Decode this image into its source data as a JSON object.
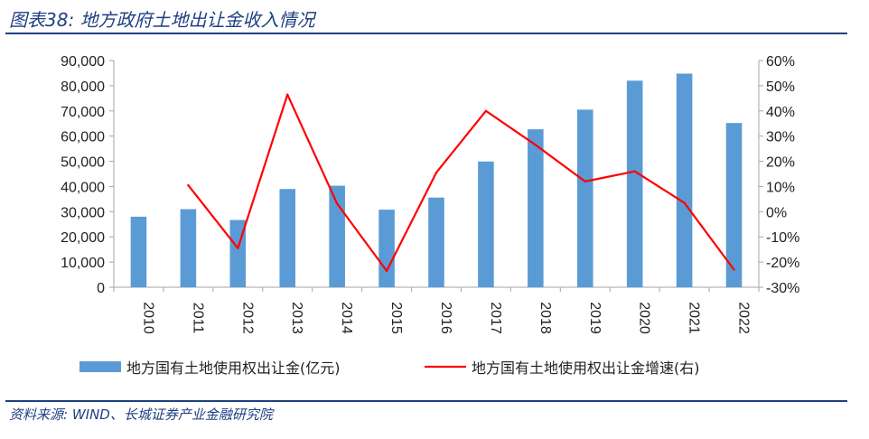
{
  "header": {
    "title": "图表38:  地方政府土地出让金收入情况"
  },
  "footer": {
    "source": "资料来源:  WIND、长城证券产业金融研究院"
  },
  "chart_data": {
    "type": "bar+line",
    "categories": [
      "2010",
      "2011",
      "2012",
      "2013",
      "2014",
      "2015",
      "2016",
      "2017",
      "2018",
      "2019",
      "2020",
      "2021",
      "2022"
    ],
    "series": [
      {
        "name": "地方国有土地使用权出让金(亿元)",
        "type": "bar",
        "axis": "left",
        "color": "#5b9bd5",
        "values": [
          28000,
          31000,
          26700,
          39000,
          40300,
          30800,
          35600,
          49900,
          62700,
          70500,
          82000,
          84800,
          65200
        ]
      },
      {
        "name": "地方国有土地使用权出让金增速(右)",
        "type": "line",
        "axis": "right",
        "color": "#ff0000",
        "values": [
          null,
          10.5,
          -14.5,
          46.5,
          3.2,
          -23.5,
          15.5,
          40.0,
          26.5,
          12.0,
          16.0,
          3.5,
          -23.0
        ]
      }
    ],
    "left_axis": {
      "ylim": [
        0,
        90000
      ],
      "ticks": [
        0,
        10000,
        20000,
        30000,
        40000,
        50000,
        60000,
        70000,
        80000,
        90000
      ],
      "tick_labels": [
        "0",
        "10,000",
        "20,000",
        "30,000",
        "40,000",
        "50,000",
        "60,000",
        "70,000",
        "80,000",
        "90,000"
      ]
    },
    "right_axis": {
      "ylim": [
        -30,
        60
      ],
      "ticks": [
        -30,
        -20,
        -10,
        0,
        10,
        20,
        30,
        40,
        50,
        60
      ],
      "tick_labels": [
        "-30%",
        "-20%",
        "-10%",
        "0%",
        "10%",
        "20%",
        "30%",
        "40%",
        "50%",
        "60%"
      ]
    },
    "x_tick_rotation": "vertical",
    "grid": false,
    "legend_position": "bottom"
  }
}
